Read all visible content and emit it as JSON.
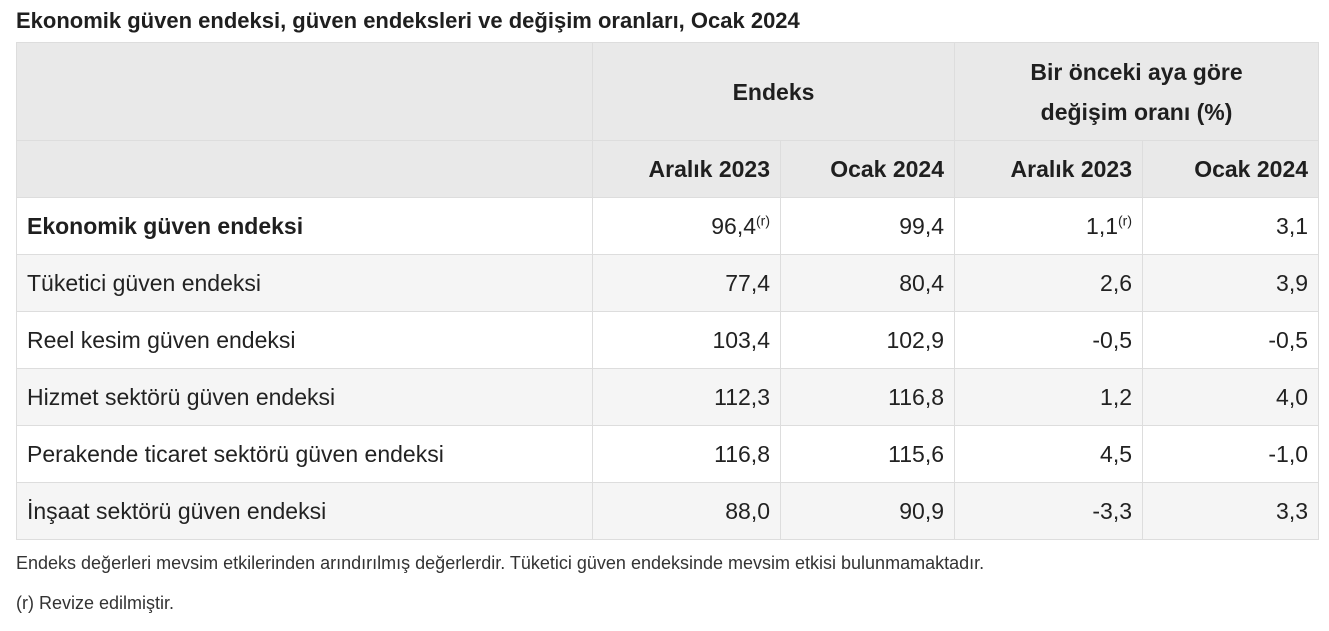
{
  "title": "Ekonomik güven endeksi, güven endeksleri ve değişim oranları, Ocak 2024",
  "table": {
    "group_headers": {
      "index": "Endeks",
      "change_line1": "Bir önceki aya göre",
      "change_line2": "değişim oranı (%)"
    },
    "columns": [
      "Aralık 2023",
      "Ocak 2024",
      "Aralık 2023",
      "Ocak 2024"
    ],
    "rows": [
      {
        "label": "Ekonomik güven endeksi",
        "v1": "96,4",
        "v1_sup": "(r)",
        "v2": "99,4",
        "v3": "1,1",
        "v3_sup": "(r)",
        "v4": "3,1"
      },
      {
        "label": "Tüketici güven endeksi",
        "v1": "77,4",
        "v2": "80,4",
        "v3": "2,6",
        "v4": "3,9"
      },
      {
        "label": "Reel kesim güven endeksi",
        "v1": "103,4",
        "v2": "102,9",
        "v3": "-0,5",
        "v4": "-0,5"
      },
      {
        "label": "Hizmet sektörü güven endeksi",
        "v1": "112,3",
        "v2": "116,8",
        "v3": "1,2",
        "v4": "4,0"
      },
      {
        "label": "Perakende ticaret sektörü güven endeksi",
        "v1": "116,8",
        "v2": "115,6",
        "v3": "4,5",
        "v4": "-1,0"
      },
      {
        "label": "İnşaat sektörü güven endeksi",
        "v1": "88,0",
        "v2": "90,9",
        "v3": "-3,3",
        "v4": "3,3"
      }
    ]
  },
  "notes": {
    "note1": "Endeks değerleri mevsim etkilerinden arındırılmış değerlerdir. Tüketici güven endeksinde mevsim etkisi bulunmamaktadır.",
    "note2": "(r) Revize edilmiştir."
  }
}
